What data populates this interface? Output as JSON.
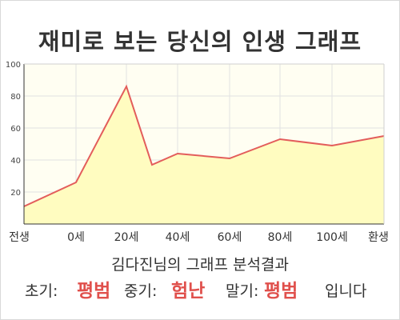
{
  "title": "재미로 보는 당신의 인생 그래프",
  "subtitle": "김다진님의 그래프 분석결과",
  "result": {
    "early_label": "초기:",
    "early_value": "평범",
    "middle_label": "중기:",
    "middle_value": "험난",
    "late_label": "말기:",
    "late_value": "평범",
    "suffix": "입니다"
  },
  "colors": {
    "fill": "#fffcc0",
    "line": "#e35d5b",
    "plot_bg": "#fffef2",
    "grid": "#e2e2e2",
    "accent": "#e0504c"
  },
  "chart_data": {
    "type": "area",
    "title": "재미로 보는 당신의 인생 그래프",
    "xlabel": "",
    "ylabel": "",
    "ylim": [
      0,
      100
    ],
    "yticks": [
      20,
      40,
      60,
      80,
      100
    ],
    "grid": true,
    "categories": [
      "전생",
      "0세",
      "20세",
      "40세",
      "60세",
      "80세",
      "100세",
      "환생"
    ],
    "points": [
      {
        "x": "전생",
        "y": 11
      },
      {
        "x": "0세",
        "y": 26
      },
      {
        "x": "20세",
        "y": 86
      },
      {
        "x": "",
        "y": 37
      },
      {
        "x": "40세",
        "y": 44
      },
      {
        "x": "60세",
        "y": 41
      },
      {
        "x": "80세",
        "y": 53
      },
      {
        "x": "100세",
        "y": 49
      },
      {
        "x": "환생",
        "y": 55
      }
    ]
  }
}
